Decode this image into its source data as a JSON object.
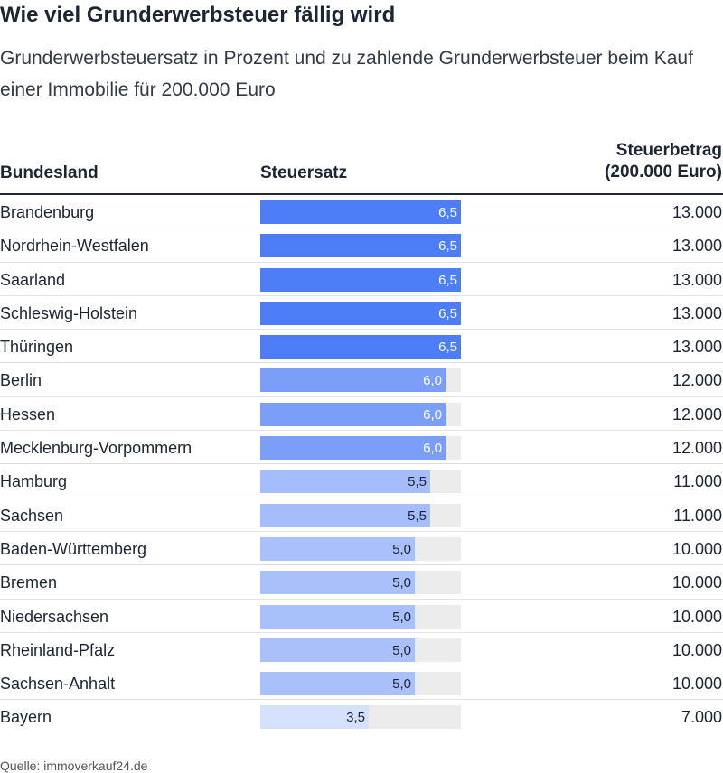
{
  "title": "Wie viel Grunderwerbsteuer fällig wird",
  "subtitle": "Grunderwerbsteuersatz in Prozent und zu zahlende Grunderwerbsteuer beim Kauf einer Immobilie für 200.000 Euro",
  "columns": {
    "state": "Bundesland",
    "rate": "Steuersatz",
    "amount_line1": "Steuerbetrag",
    "amount_line2": "(200.000 Euro)"
  },
  "source": "Quelle: immoverkauf24.de",
  "colors": {
    "rate_6_5": "#4d7ef7",
    "rate_6_0": "#7b9ff8",
    "rate_5_5": "#a5bdfa",
    "rate_5_0": "#a9c0fb",
    "rate_3_5": "#d6e1fd",
    "track": "#ececec",
    "label_on_dark": "#ffffff",
    "label_on_light": "#1d2433"
  },
  "chart_data": {
    "type": "table",
    "title": "Wie viel Grunderwerbsteuer fällig wird",
    "subtitle": "Grunderwerbsteuersatz in Prozent und zu zahlende Grunderwerbsteuer beim Kauf einer Immobilie für 200.000 Euro",
    "bar_max": 6.5,
    "rows": [
      {
        "state": "Brandenburg",
        "rate": 6.5,
        "rate_label": "6,5",
        "amount": "13.000"
      },
      {
        "state": "Nordrhein-Westfalen",
        "rate": 6.5,
        "rate_label": "6,5",
        "amount": "13.000"
      },
      {
        "state": "Saarland",
        "rate": 6.5,
        "rate_label": "6,5",
        "amount": "13.000"
      },
      {
        "state": "Schleswig-Holstein",
        "rate": 6.5,
        "rate_label": "6,5",
        "amount": "13.000"
      },
      {
        "state": "Thüringen",
        "rate": 6.5,
        "rate_label": "6,5",
        "amount": "13.000"
      },
      {
        "state": "Berlin",
        "rate": 6.0,
        "rate_label": "6,0",
        "amount": "12.000"
      },
      {
        "state": "Hessen",
        "rate": 6.0,
        "rate_label": "6,0",
        "amount": "12.000"
      },
      {
        "state": "Mecklenburg-Vorpommern",
        "rate": 6.0,
        "rate_label": "6,0",
        "amount": "12.000"
      },
      {
        "state": "Hamburg",
        "rate": 5.5,
        "rate_label": "5,5",
        "amount": "11.000"
      },
      {
        "state": "Sachsen",
        "rate": 5.5,
        "rate_label": "5,5",
        "amount": "11.000"
      },
      {
        "state": "Baden-Württemberg",
        "rate": 5.0,
        "rate_label": "5,0",
        "amount": "10.000"
      },
      {
        "state": "Bremen",
        "rate": 5.0,
        "rate_label": "5,0",
        "amount": "10.000"
      },
      {
        "state": "Niedersachsen",
        "rate": 5.0,
        "rate_label": "5,0",
        "amount": "10.000"
      },
      {
        "state": "Rheinland-Pfalz",
        "rate": 5.0,
        "rate_label": "5,0",
        "amount": "10.000"
      },
      {
        "state": "Sachsen-Anhalt",
        "rate": 5.0,
        "rate_label": "5,0",
        "amount": "10.000"
      },
      {
        "state": "Bayern",
        "rate": 3.5,
        "rate_label": "3,5",
        "amount": "7.000"
      }
    ]
  }
}
